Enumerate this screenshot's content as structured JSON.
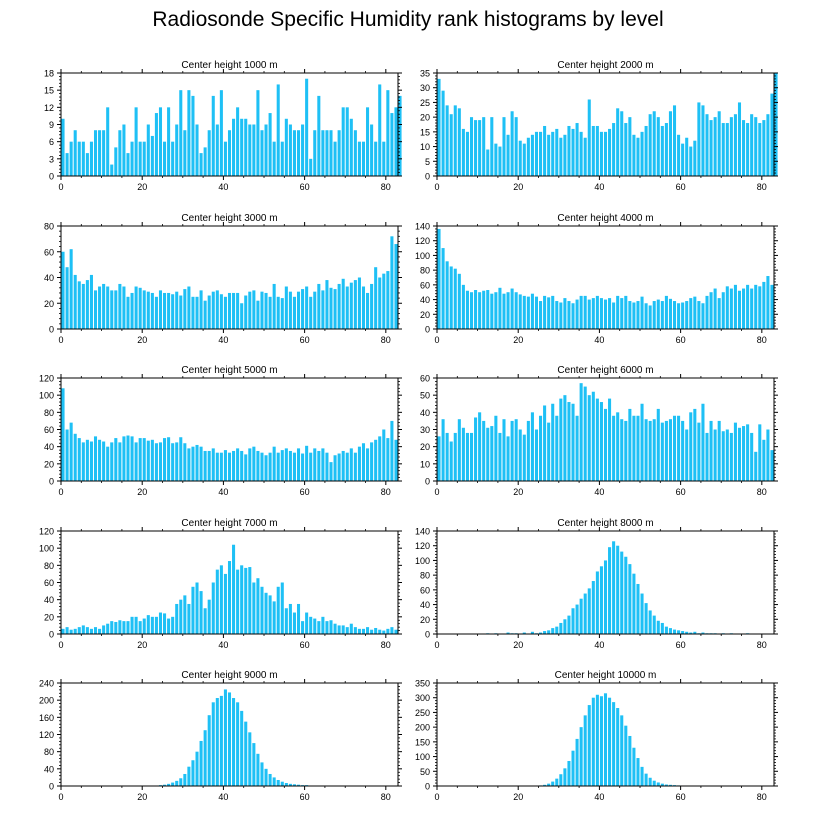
{
  "title": "Radiosonde Specific Humidity rank histograms by level",
  "bar_color": "#1ec0f5",
  "chart_data": [
    {
      "type": "bar",
      "title": "Center height 1000 m",
      "x_ticks": [
        0,
        20,
        40,
        60,
        80
      ],
      "ylim": [
        0,
        18
      ],
      "y_ticks": [
        0,
        3,
        6,
        9,
        12,
        15,
        18
      ],
      "values": [
        10,
        4,
        6,
        8,
        6,
        6,
        4,
        6,
        8,
        8,
        8,
        12,
        2,
        5,
        8,
        9,
        4,
        6,
        12,
        6,
        6,
        9,
        7,
        11,
        12,
        6,
        12,
        6,
        9,
        15,
        8,
        15,
        14,
        9,
        4,
        5,
        8,
        14,
        9,
        15,
        6,
        8,
        10,
        12,
        10,
        10,
        9,
        9,
        15,
        8,
        9,
        11,
        6,
        16,
        6,
        10,
        9,
        8,
        8,
        9,
        17,
        3,
        8,
        14,
        8,
        8,
        8,
        6,
        8,
        12,
        12,
        10,
        8,
        6,
        6,
        12,
        9,
        6,
        16,
        6,
        15,
        11,
        12,
        14
      ]
    },
    {
      "type": "bar",
      "title": "Center height 2000 m",
      "x_ticks": [
        0,
        20,
        40,
        60,
        80
      ],
      "ylim": [
        0,
        35
      ],
      "y_ticks": [
        0,
        5,
        10,
        15,
        20,
        25,
        30,
        35
      ],
      "values": [
        33,
        29,
        24,
        21,
        24,
        23,
        16,
        15,
        20,
        19,
        19,
        20,
        9,
        20,
        11,
        10,
        20,
        14,
        22,
        20,
        12,
        11,
        13,
        14,
        15,
        15,
        17,
        14,
        15,
        16,
        13,
        14,
        17,
        16,
        18,
        15,
        13,
        26,
        17,
        17,
        15,
        15,
        16,
        18,
        23,
        22,
        18,
        20,
        14,
        13,
        15,
        17,
        21,
        22,
        20,
        17,
        18,
        22,
        24,
        14,
        11,
        13,
        10,
        12,
        25,
        24,
        21,
        19,
        20,
        22,
        18,
        18,
        20,
        21,
        25,
        19,
        18,
        21,
        20,
        18,
        19,
        21,
        28,
        35
      ]
    },
    {
      "type": "bar",
      "title": "Center height 3000 m",
      "x_ticks": [
        0,
        20,
        40,
        60,
        80
      ],
      "ylim": [
        0,
        80
      ],
      "y_ticks": [
        0,
        20,
        40,
        60,
        80
      ],
      "values": [
        60,
        48,
        62,
        42,
        37,
        35,
        38,
        42,
        30,
        33,
        35,
        33,
        30,
        30,
        35,
        33,
        25,
        28,
        33,
        32,
        30,
        29,
        28,
        25,
        30,
        28,
        28,
        27,
        29,
        26,
        31,
        33,
        25,
        25,
        30,
        22,
        26,
        29,
        30,
        27,
        25,
        28,
        28,
        28,
        20,
        26,
        29,
        30,
        22,
        29,
        28,
        25,
        35,
        25,
        24,
        33,
        29,
        25,
        29,
        31,
        33,
        25,
        29,
        35,
        30,
        38,
        32,
        31,
        35,
        39,
        33,
        36,
        38,
        40,
        33,
        28,
        35,
        48,
        40,
        43,
        45,
        72,
        66
      ]
    },
    {
      "type": "bar",
      "title": "Center height 4000 m",
      "x_ticks": [
        0,
        20,
        40,
        60,
        80
      ],
      "ylim": [
        0,
        140
      ],
      "y_ticks": [
        0,
        20,
        40,
        60,
        80,
        100,
        120,
        140
      ],
      "values": [
        136,
        110,
        92,
        85,
        82,
        75,
        60,
        52,
        50,
        53,
        50,
        52,
        53,
        48,
        50,
        56,
        48,
        50,
        55,
        50,
        47,
        45,
        44,
        48,
        44,
        38,
        45,
        43,
        45,
        38,
        36,
        42,
        38,
        35,
        40,
        45,
        45,
        40,
        42,
        45,
        42,
        40,
        42,
        36,
        45,
        42,
        45,
        38,
        36,
        38,
        44,
        35,
        32,
        38,
        40,
        38,
        45,
        41,
        38,
        35,
        36,
        38,
        42,
        44,
        38,
        35,
        45,
        50,
        55,
        42,
        50,
        58,
        55,
        60,
        52,
        55,
        60,
        55,
        60,
        58,
        64,
        72,
        60
      ]
    },
    {
      "type": "bar",
      "title": "Center height 5000 m",
      "x_ticks": [
        0,
        20,
        40,
        60,
        80
      ],
      "ylim": [
        0,
        120
      ],
      "y_ticks": [
        0,
        20,
        40,
        60,
        80,
        100,
        120
      ],
      "values": [
        108,
        60,
        68,
        55,
        50,
        45,
        48,
        46,
        52,
        48,
        46,
        40,
        45,
        50,
        45,
        52,
        53,
        52,
        45,
        50,
        50,
        47,
        48,
        44,
        45,
        50,
        51,
        44,
        45,
        51,
        44,
        38,
        40,
        42,
        40,
        35,
        35,
        38,
        33,
        33,
        36,
        33,
        35,
        38,
        35,
        31,
        38,
        40,
        35,
        33,
        30,
        33,
        40,
        33,
        36,
        38,
        35,
        33,
        38,
        32,
        41,
        33,
        38,
        35,
        38,
        33,
        22,
        30,
        32,
        35,
        33,
        38,
        33,
        40,
        44,
        38,
        45,
        48,
        52,
        60,
        50,
        70,
        48
      ]
    },
    {
      "type": "bar",
      "title": "Center height 6000 m",
      "x_ticks": [
        0,
        20,
        40,
        60,
        80
      ],
      "ylim": [
        0,
        60
      ],
      "y_ticks": [
        0,
        10,
        20,
        30,
        40,
        50,
        60
      ],
      "values": [
        26,
        36,
        28,
        23,
        28,
        36,
        31,
        28,
        28,
        37,
        40,
        35,
        31,
        32,
        38,
        28,
        36,
        26,
        35,
        36,
        30,
        27,
        35,
        40,
        30,
        38,
        44,
        34,
        45,
        38,
        48,
        50,
        46,
        45,
        38,
        57,
        55,
        50,
        52,
        48,
        46,
        42,
        48,
        38,
        40,
        36,
        35,
        42,
        38,
        38,
        45,
        36,
        35,
        36,
        42,
        34,
        35,
        36,
        38,
        38,
        35,
        30,
        40,
        42,
        34,
        45,
        28,
        35,
        30,
        35,
        29,
        30,
        28,
        34,
        31,
        32,
        33,
        28,
        17,
        33,
        24,
        30,
        18
      ]
    },
    {
      "type": "bar",
      "title": "Center height 7000 m",
      "x_ticks": [
        0,
        20,
        40,
        60,
        80
      ],
      "ylim": [
        0,
        120
      ],
      "y_ticks": [
        0,
        20,
        40,
        60,
        80,
        100,
        120
      ],
      "values": [
        6,
        8,
        5,
        6,
        8,
        10,
        8,
        6,
        8,
        6,
        10,
        12,
        15,
        14,
        16,
        15,
        15,
        20,
        20,
        15,
        18,
        22,
        20,
        20,
        25,
        24,
        18,
        20,
        35,
        40,
        45,
        35,
        55,
        60,
        50,
        30,
        40,
        60,
        75,
        80,
        70,
        85,
        104,
        75,
        80,
        77,
        78,
        60,
        65,
        55,
        48,
        45,
        38,
        55,
        60,
        30,
        35,
        25,
        35,
        15,
        25,
        20,
        18,
        15,
        20,
        15,
        16,
        12,
        10,
        10,
        8,
        12,
        8,
        6,
        6,
        8,
        5,
        7,
        5,
        4,
        6,
        8,
        5
      ]
    },
    {
      "type": "bar",
      "title": "Center height 8000 m",
      "x_ticks": [
        0,
        20,
        40,
        60,
        80
      ],
      "ylim": [
        0,
        140
      ],
      "y_ticks": [
        0,
        20,
        40,
        60,
        80,
        100,
        120,
        140
      ],
      "values": [
        0,
        0,
        0,
        0,
        0,
        0,
        0,
        0,
        0,
        0,
        0,
        0,
        1,
        0,
        1,
        0,
        0,
        2,
        1,
        1,
        0,
        2,
        0,
        3,
        1,
        2,
        4,
        5,
        8,
        10,
        15,
        20,
        25,
        35,
        40,
        48,
        55,
        62,
        72,
        85,
        92,
        100,
        118,
        126,
        120,
        112,
        105,
        95,
        82,
        68,
        55,
        42,
        32,
        25,
        18,
        15,
        10,
        8,
        6,
        5,
        4,
        3,
        2,
        3,
        1,
        2,
        1,
        1,
        1,
        0,
        1,
        0,
        1,
        0,
        0,
        0,
        1,
        0,
        0,
        0,
        0,
        0,
        0
      ]
    },
    {
      "type": "bar",
      "title": "Center height 9000 m",
      "x_ticks": [
        0,
        20,
        40,
        60,
        80
      ],
      "ylim": [
        0,
        240
      ],
      "y_ticks": [
        0,
        40,
        80,
        120,
        160,
        200,
        240
      ],
      "values": [
        0,
        0,
        0,
        0,
        0,
        0,
        0,
        0,
        0,
        0,
        0,
        0,
        0,
        0,
        0,
        0,
        0,
        0,
        0,
        0,
        0,
        1,
        0,
        1,
        2,
        3,
        5,
        8,
        12,
        18,
        28,
        45,
        60,
        80,
        105,
        130,
        165,
        195,
        205,
        210,
        225,
        218,
        205,
        195,
        175,
        150,
        125,
        100,
        75,
        55,
        40,
        28,
        20,
        14,
        10,
        7,
        5,
        4,
        3,
        2,
        2,
        1,
        1,
        1,
        0,
        1,
        0,
        0,
        0,
        0,
        0,
        0,
        0,
        0,
        0,
        0,
        0,
        0,
        0,
        0,
        0,
        0,
        0
      ]
    },
    {
      "type": "bar",
      "title": "Center height 10000 m",
      "x_ticks": [
        0,
        20,
        40,
        60,
        80
      ],
      "ylim": [
        0,
        350
      ],
      "y_ticks": [
        0,
        50,
        100,
        150,
        200,
        250,
        300,
        350
      ],
      "values": [
        0,
        0,
        0,
        0,
        0,
        0,
        0,
        0,
        0,
        0,
        0,
        0,
        0,
        0,
        0,
        0,
        0,
        0,
        0,
        0,
        0,
        0,
        0,
        1,
        1,
        2,
        4,
        8,
        15,
        25,
        40,
        60,
        85,
        120,
        160,
        200,
        240,
        275,
        300,
        310,
        305,
        315,
        300,
        285,
        265,
        240,
        205,
        170,
        130,
        95,
        65,
        42,
        28,
        18,
        12,
        8,
        5,
        4,
        3,
        2,
        1,
        1,
        1,
        0,
        1,
        0,
        0,
        0,
        0,
        0,
        0,
        0,
        0,
        0,
        0,
        0,
        0,
        0,
        0,
        0,
        0,
        0,
        0
      ]
    }
  ]
}
